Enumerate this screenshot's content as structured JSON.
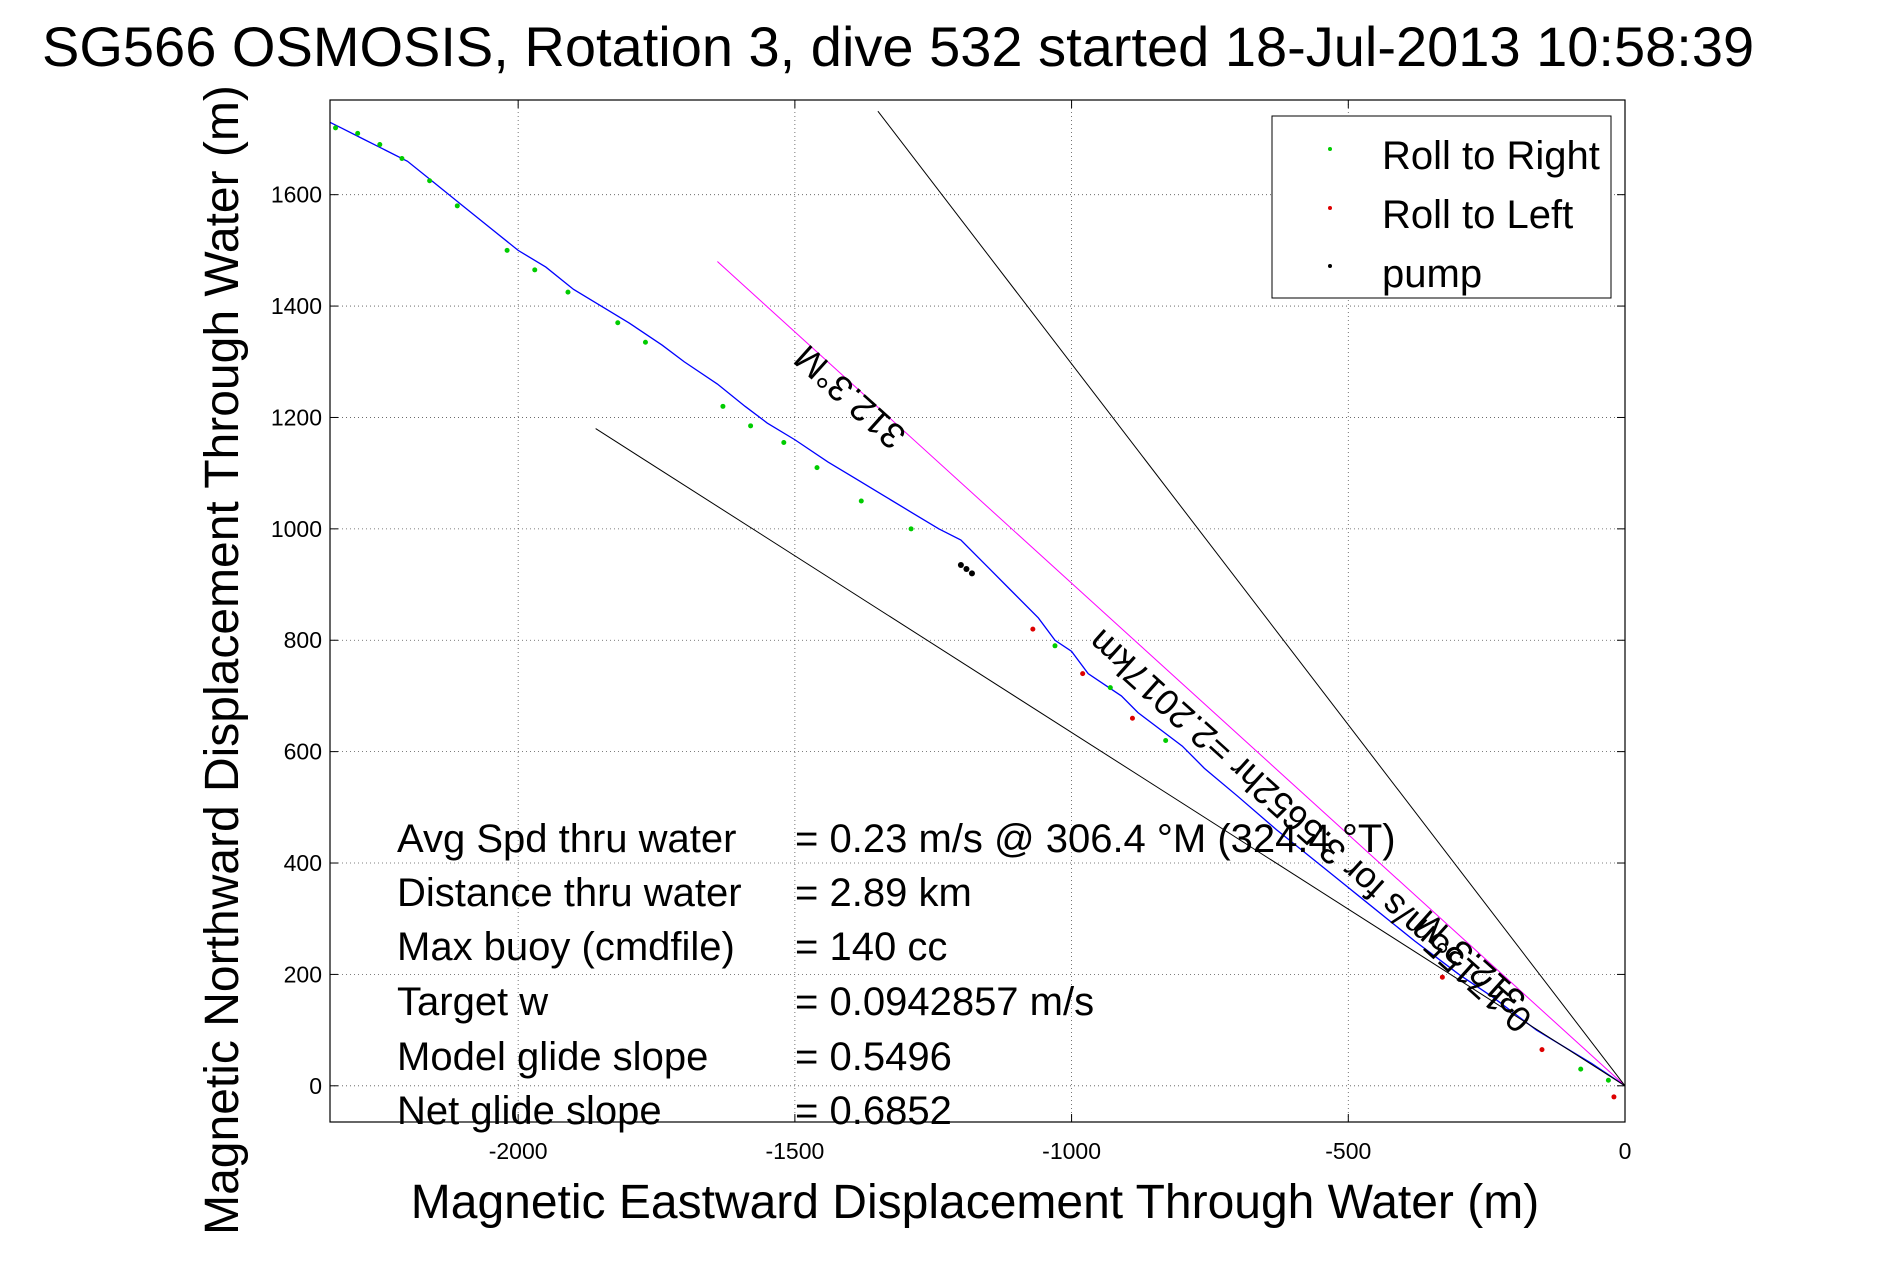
{
  "chart_data": {
    "type": "line",
    "title": "SG566 OSMOSIS, Rotation 3, dive 532 started 18-Jul-2013 10:58:39",
    "xlabel": "Magnetic Eastward Displacement Through Water (m)",
    "ylabel": "Magnetic Northward Displacement Through Water (m)",
    "xlim": [
      -2340,
      0
    ],
    "ylim": [
      -65,
      1770
    ],
    "xticks": [
      -2000,
      -1500,
      -1000,
      -500,
      0
    ],
    "yticks": [
      0,
      200,
      400,
      600,
      800,
      1000,
      1200,
      1400,
      1600
    ],
    "xtick_labels": [
      "-2000",
      "-1500",
      "-1000",
      "-500",
      "0"
    ],
    "ytick_labels": [
      "0",
      "200",
      "400",
      "600",
      "800",
      "1000",
      "1200",
      "1400",
      "1600"
    ],
    "grid": true,
    "legend_position": "top-right",
    "legend": [
      {
        "label": "Roll to Right",
        "color": "#00cc00"
      },
      {
        "label": "Roll to Left",
        "color": "#dd0000"
      },
      {
        "label": "pump",
        "color": "#000000"
      }
    ],
    "series": [
      {
        "kind": "track",
        "color": "#0000ff",
        "x": [
          0,
          -60,
          -110,
          -160,
          -200,
          -240,
          -300,
          -340,
          -380,
          -430,
          -480,
          -530,
          -580,
          -630,
          -700,
          -760,
          -800,
          -840,
          -880,
          -910,
          -940,
          -970,
          -1000,
          -1030,
          -1060,
          -1110,
          -1150,
          -1200,
          -1240,
          -1290,
          -1340,
          -1390,
          -1440,
          -1500,
          -1550,
          -1590,
          -1640,
          -1700,
          -1740,
          -1800,
          -1850,
          -1900,
          -1950,
          -2000,
          -2050,
          -2100,
          -2150,
          -2200,
          -2240,
          -2280,
          -2320,
          -2340
        ],
        "y": [
          0,
          40,
          70,
          100,
          130,
          160,
          200,
          230,
          260,
          300,
          340,
          380,
          420,
          460,
          520,
          570,
          610,
          640,
          670,
          700,
          720,
          740,
          780,
          800,
          840,
          890,
          930,
          980,
          1000,
          1030,
          1060,
          1090,
          1120,
          1160,
          1190,
          1220,
          1260,
          1300,
          1330,
          1370,
          1400,
          1430,
          1470,
          1500,
          1540,
          1580,
          1620,
          1660,
          1680,
          1700,
          1720,
          1730
        ]
      },
      {
        "kind": "line",
        "color": "#ff00ff",
        "x": [
          0,
          -1640
        ],
        "y": [
          0,
          1480
        ]
      },
      {
        "kind": "line",
        "color": "#000000",
        "x": [
          0,
          -1350
        ],
        "y": [
          0,
          1750
        ]
      },
      {
        "kind": "line",
        "color": "#000000",
        "x": [
          0,
          -1860
        ],
        "y": [
          0,
          1180
        ]
      }
    ],
    "roll_right_points": {
      "x": [
        -2330,
        -2290,
        -2250,
        -2210,
        -2160,
        -2110,
        -2020,
        -1970,
        -1910,
        -1820,
        -1770,
        -1630,
        -1580,
        -1520,
        -1460,
        -1380,
        -1290,
        -1030,
        -930,
        -830,
        -80,
        -30
      ],
      "y": [
        1720,
        1710,
        1690,
        1665,
        1625,
        1580,
        1500,
        1465,
        1425,
        1370,
        1335,
        1220,
        1185,
        1155,
        1110,
        1050,
        1000,
        790,
        715,
        620,
        30,
        10
      ]
    },
    "roll_left_points": {
      "x": [
        -1070,
        -980,
        -890,
        -330,
        -150,
        -20
      ],
      "y": [
        820,
        740,
        660,
        195,
        65,
        -20
      ]
    },
    "pump_points": {
      "x": [
        -1200,
        -1190,
        -1180
      ],
      "y": [
        935,
        928,
        920
      ]
    },
    "annotations": [
      {
        "text": "312.3°M",
        "x": -1370,
        "y": 1220
      },
      {
        "text": "0.17155m/s for 3.5652hr =2.2017km",
        "x": -660,
        "y": 600
      },
      {
        "text": "312.3°M",
        "x": -340,
        "y": 240
      }
    ]
  },
  "stats": {
    "rows": [
      {
        "label": "Avg Spd thru water",
        "value": "=  0.23 m/s @ 306.4 °M (324.4 °T)"
      },
      {
        "label": "Distance thru water",
        "value": "=  2.89 km"
      },
      {
        "label": "Max buoy (cmdfile)",
        "value": "= 140 cc"
      },
      {
        "label": "Target w",
        "value": "= 0.0942857 m/s"
      },
      {
        "label": "Model glide slope",
        "value": "= 0.5496"
      },
      {
        "label": "Net glide slope",
        "value": "= 0.6852"
      }
    ]
  }
}
